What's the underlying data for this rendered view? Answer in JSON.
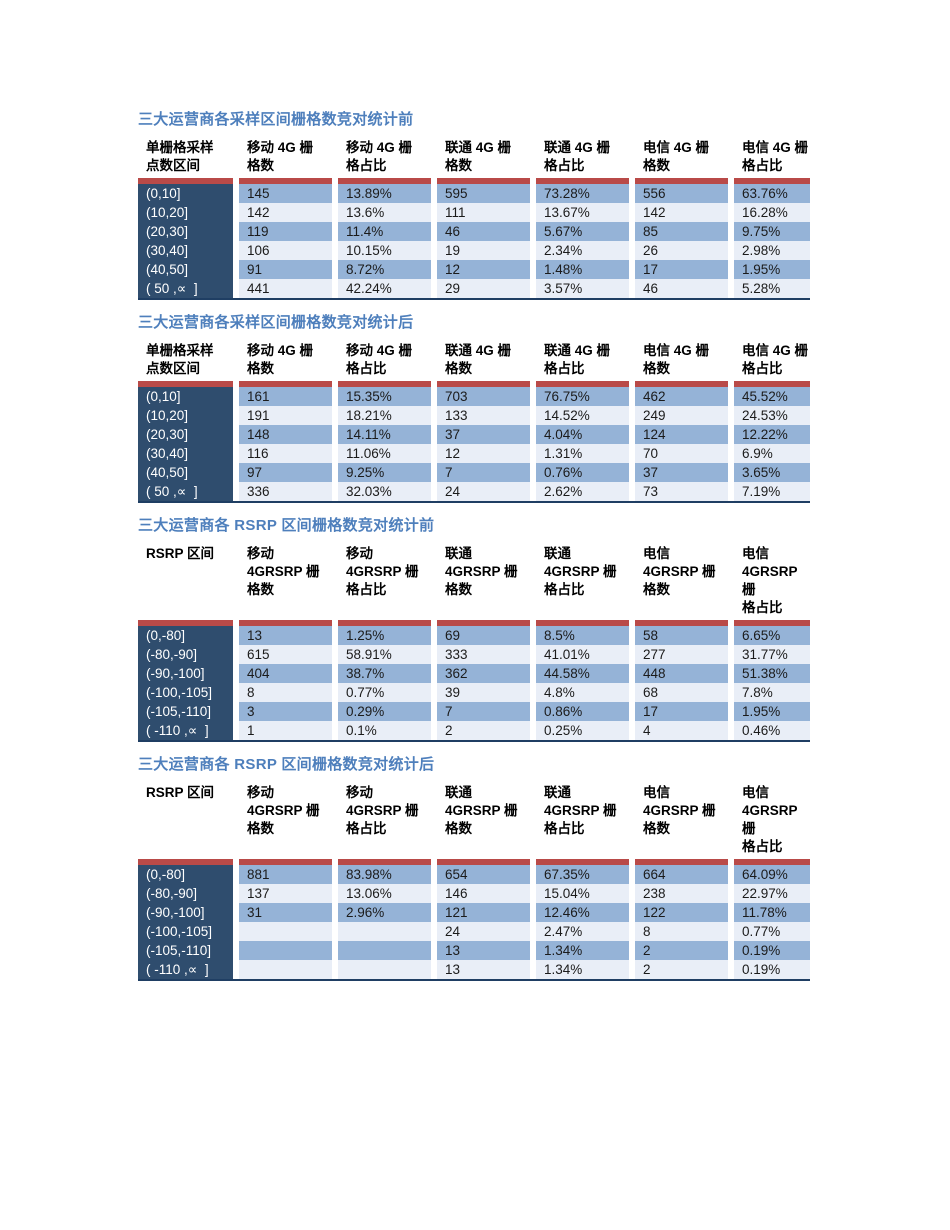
{
  "colors": {
    "title_blue": "#4e7fbc",
    "accent_bar_red": "#b94a48",
    "row_header_navy": "#2f4d6e",
    "band_medium_blue": "#95b3d7",
    "band_light_blue": "#e9eef7",
    "table_bottom_border_navy": "#1f3e63",
    "header_text": "#000000",
    "data_text": "#1b1b1b",
    "row_header_text": "#ffffff"
  },
  "tables": [
    {
      "title": "三大运营商各采样区间栅格数竞对统计前",
      "headers": [
        "单栅格采样\n点数区间",
        "移动 4G 栅\n格数",
        "移动 4G 栅\n格占比",
        "联通 4G 栅\n格数",
        "联通 4G 栅\n格占比",
        "电信 4G 栅\n格数",
        "电信 4G 栅\n格占比"
      ],
      "rows": [
        [
          "(0,10]",
          "145",
          "13.89%",
          "595",
          "73.28%",
          "556",
          "63.76%"
        ],
        [
          "(10,20]",
          "142",
          "13.6%",
          "111",
          "13.67%",
          "142",
          "16.28%"
        ],
        [
          "(20,30]",
          "119",
          "11.4%",
          "46",
          "5.67%",
          "85",
          "9.75%"
        ],
        [
          "(30,40]",
          "106",
          "10.15%",
          "19",
          "2.34%",
          "26",
          "2.98%"
        ],
        [
          "(40,50]",
          "91",
          "8.72%",
          "12",
          "1.48%",
          "17",
          "1.95%"
        ],
        [
          "( 50 ,∝  ]",
          "441",
          "42.24%",
          "29",
          "3.57%",
          "46",
          "5.28%"
        ]
      ]
    },
    {
      "title": "三大运营商各采样区间栅格数竞对统计后",
      "headers": [
        "单栅格采样\n点数区间",
        "移动 4G 栅\n格数",
        "移动 4G 栅\n格占比",
        "联通 4G 栅\n格数",
        "联通 4G 栅\n格占比",
        "电信 4G 栅\n格数",
        "电信 4G 栅\n格占比"
      ],
      "rows": [
        [
          "(0,10]",
          "161",
          "15.35%",
          "703",
          "76.75%",
          "462",
          "45.52%"
        ],
        [
          "(10,20]",
          "191",
          "18.21%",
          "133",
          "14.52%",
          "249",
          "24.53%"
        ],
        [
          "(20,30]",
          "148",
          "14.11%",
          "37",
          "4.04%",
          "124",
          "12.22%"
        ],
        [
          "(30,40]",
          "116",
          "11.06%",
          "12",
          "1.31%",
          "70",
          "6.9%"
        ],
        [
          "(40,50]",
          "97",
          "9.25%",
          "7",
          "0.76%",
          "37",
          "3.65%"
        ],
        [
          "( 50 ,∝  ]",
          "336",
          "32.03%",
          "24",
          "2.62%",
          "73",
          "7.19%"
        ]
      ]
    },
    {
      "title": "三大运营商各 RSRP 区间栅格数竞对统计前",
      "headers": [
        "RSRP 区间",
        "移动\n4GRSRP 栅\n格数",
        "移动\n4GRSRP 栅\n格占比",
        "联通\n4GRSRP 栅\n格数",
        "联通\n4GRSRP 栅\n格占比",
        "电信\n4GRSRP 栅\n格数",
        "电信\n4GRSRP 栅\n格占比"
      ],
      "rows": [
        [
          "(0,-80]",
          "13",
          "1.25%",
          "69",
          "8.5%",
          "58",
          "6.65%"
        ],
        [
          "(-80,-90]",
          "615",
          "58.91%",
          "333",
          "41.01%",
          "277",
          "31.77%"
        ],
        [
          "(-90,-100]",
          "404",
          "38.7%",
          "362",
          "44.58%",
          "448",
          "51.38%"
        ],
        [
          "(-100,-105]",
          "8",
          "0.77%",
          "39",
          "4.8%",
          "68",
          "7.8%"
        ],
        [
          "(-105,-110]",
          "3",
          "0.29%",
          "7",
          "0.86%",
          "17",
          "1.95%"
        ],
        [
          "( -110 ,∝  ]",
          "1",
          "0.1%",
          "2",
          "0.25%",
          "4",
          "0.46%"
        ]
      ]
    },
    {
      "title": "三大运营商各 RSRP 区间栅格数竞对统计后",
      "headers": [
        "RSRP 区间",
        "移动\n4GRSRP 栅\n格数",
        "移动\n4GRSRP 栅\n格占比",
        "联通\n4GRSRP 栅\n格数",
        "联通\n4GRSRP 栅\n格占比",
        "电信\n4GRSRP 栅\n格数",
        "电信\n4GRSRP 栅\n格占比"
      ],
      "rows": [
        [
          "(0,-80]",
          "881",
          "83.98%",
          "654",
          "67.35%",
          "664",
          "64.09%"
        ],
        [
          "(-80,-90]",
          "137",
          "13.06%",
          "146",
          "15.04%",
          "238",
          "22.97%"
        ],
        [
          "(-90,-100]",
          "31",
          "2.96%",
          "121",
          "12.46%",
          "122",
          "11.78%"
        ],
        [
          "(-100,-105]",
          "",
          "",
          "24",
          "2.47%",
          "8",
          "0.77%"
        ],
        [
          "(-105,-110]",
          "",
          "",
          "13",
          "1.34%",
          "2",
          "0.19%"
        ],
        [
          "( -110 ,∝  ]",
          "",
          "",
          "13",
          "1.34%",
          "2",
          "0.19%"
        ]
      ]
    }
  ]
}
